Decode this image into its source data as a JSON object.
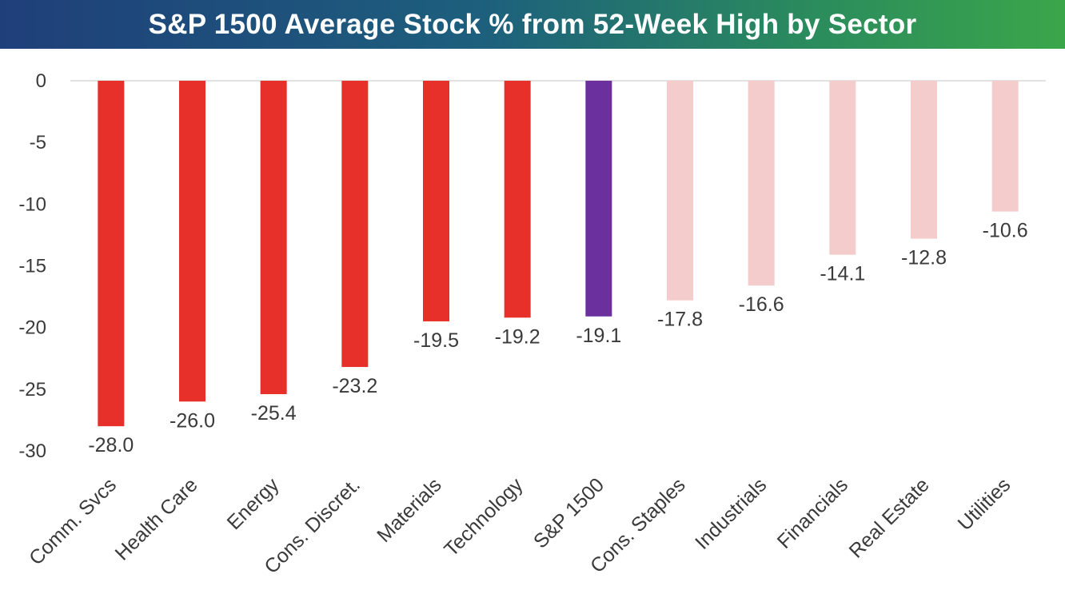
{
  "chart_data": {
    "type": "bar",
    "title": "S&P 1500 Average Stock % from 52-Week High by Sector",
    "xlabel": "",
    "ylabel": "",
    "ylim": [
      -30,
      0
    ],
    "yticks": [
      0,
      -5,
      -10,
      -15,
      -20,
      -25,
      -30
    ],
    "ytick_labels": [
      "0",
      "-5",
      "-10",
      "-15",
      "-20",
      "-25",
      "-30"
    ],
    "grid": false,
    "categories": [
      "Comm. Svcs",
      "Health Care",
      "Energy",
      "Cons. Discret.",
      "Materials",
      "Technology",
      "S&P 1500",
      "Cons. Staples",
      "Industrials",
      "Financials",
      "Real Estate",
      "Utilities"
    ],
    "values": [
      -28.0,
      -26.0,
      -25.4,
      -23.2,
      -19.5,
      -19.2,
      -19.1,
      -17.8,
      -16.6,
      -14.1,
      -12.8,
      -10.6
    ],
    "value_labels": [
      "-28.0",
      "-26.0",
      "-25.4",
      "-23.2",
      "-19.5",
      "-19.2",
      "-19.1",
      "-17.8",
      "-16.6",
      "-14.1",
      "-12.8",
      "-10.6"
    ],
    "colors": [
      "#e8302a",
      "#e8302a",
      "#e8302a",
      "#e8302a",
      "#e8302a",
      "#e8302a",
      "#6c2f9e",
      "#f5cccc",
      "#f5cccc",
      "#f5cccc",
      "#f5cccc",
      "#f5cccc"
    ]
  }
}
